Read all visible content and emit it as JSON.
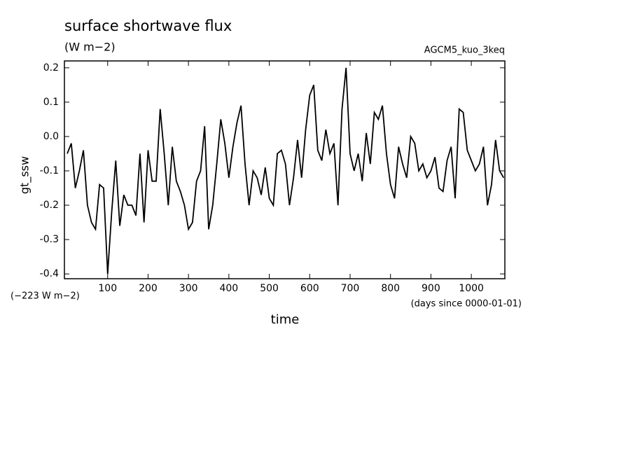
{
  "chart_data": {
    "type": "line",
    "title": "surface shortwave flux",
    "subtitle": "(W m−2)",
    "annotations": [
      "AGCM5_kuo_3keq",
      "(−223 W m−2)",
      "(days since 0000-01-01)"
    ],
    "x_label": "time",
    "y_label": "gt_ssw",
    "x": [
      0,
      10,
      20,
      30,
      40,
      50,
      60,
      70,
      80,
      90,
      100,
      110,
      120,
      130,
      140,
      150,
      160,
      170,
      180,
      190,
      200,
      210,
      220,
      230,
      240,
      250,
      260,
      270,
      280,
      290,
      300,
      310,
      320,
      330,
      340,
      350,
      360,
      370,
      380,
      390,
      400,
      410,
      420,
      430,
      440,
      450,
      460,
      470,
      480,
      490,
      500,
      510,
      520,
      530,
      540,
      550,
      560,
      570,
      580,
      590,
      600,
      610,
      620,
      630,
      640,
      650,
      660,
      670,
      680,
      690,
      700,
      710,
      720,
      730,
      740,
      750,
      760,
      770,
      780,
      790,
      800,
      810,
      820,
      830,
      840,
      850,
      860,
      870,
      880,
      890,
      900,
      910,
      920,
      930,
      940,
      950,
      960,
      970,
      980,
      990,
      1000,
      1010,
      1020,
      1030,
      1040,
      1050,
      1060,
      1070,
      1080
    ],
    "series": [
      {
        "name": "gt_ssw",
        "color": "#000000",
        "values": [
          -0.05,
          -0.02,
          -0.15,
          -0.1,
          -0.04,
          -0.2,
          -0.25,
          -0.27,
          -0.14,
          -0.15,
          -0.4,
          -0.22,
          -0.07,
          -0.26,
          -0.17,
          -0.2,
          -0.2,
          -0.23,
          -0.05,
          -0.25,
          -0.04,
          -0.13,
          -0.13,
          0.08,
          -0.05,
          -0.2,
          -0.03,
          -0.13,
          -0.16,
          -0.2,
          -0.27,
          -0.25,
          -0.13,
          -0.1,
          0.03,
          -0.27,
          -0.2,
          -0.08,
          0.05,
          -0.02,
          -0.12,
          -0.03,
          0.04,
          0.09,
          -0.08,
          -0.2,
          -0.1,
          -0.12,
          -0.17,
          -0.09,
          -0.18,
          -0.2,
          -0.05,
          -0.04,
          -0.08,
          -0.2,
          -0.12,
          -0.01,
          -0.12,
          0.02,
          0.12,
          0.15,
          -0.04,
          -0.07,
          0.02,
          -0.05,
          -0.02,
          -0.2,
          0.08,
          0.2,
          -0.05,
          -0.1,
          -0.05,
          -0.13,
          0.01,
          -0.08,
          0.07,
          0.05,
          0.09,
          -0.05,
          -0.14,
          -0.18,
          -0.03,
          -0.08,
          -0.12,
          0.0,
          -0.02,
          -0.1,
          -0.08,
          -0.12,
          -0.1,
          -0.06,
          -0.15,
          -0.16,
          -0.07,
          -0.03,
          -0.18,
          0.08,
          0.07,
          -0.04,
          -0.07,
          -0.1,
          -0.08,
          -0.03,
          -0.2,
          -0.14,
          -0.01,
          -0.1,
          -0.12
        ]
      }
    ],
    "xlim": [
      -7,
      1083
    ],
    "xticks": [
      100,
      200,
      300,
      400,
      500,
      600,
      700,
      800,
      900,
      1000
    ],
    "ylim": [
      -0.414,
      0.22
    ],
    "yticks": [
      -0.4,
      -0.3,
      -0.2,
      -0.1,
      {
        "value": 0,
        "label": "0.0"
      },
      0.1,
      0.2
    ]
  }
}
